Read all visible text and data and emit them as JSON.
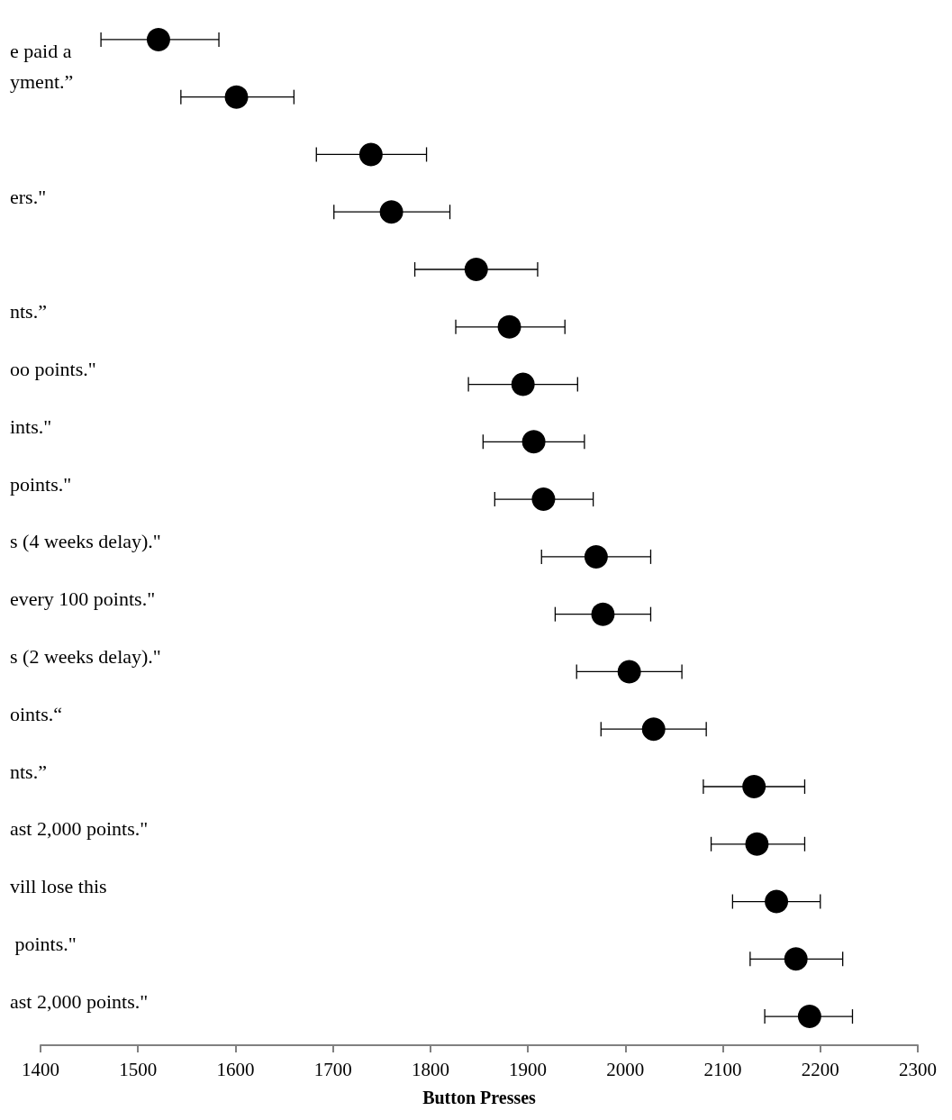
{
  "chart_data": {
    "type": "scatter",
    "orientation": "horizontal",
    "xlabel": "Button Presses",
    "categories": [
      null,
      "e paid a\nyment.”",
      null,
      "ers.\"",
      null,
      "nts.”",
      "oo points.\"",
      "ints.\"",
      "points.\"",
      "s (4 weeks delay).\"",
      "every 100 points.\"",
      "s (2 weeks delay).\"",
      "oints.“",
      "nts.”",
      "ast 2,000 points.\"",
      "vill lose this",
      " points.\"",
      "ast 2,000 points.\""
    ],
    "values": [
      1521,
      1601,
      1739,
      1760,
      1847,
      1881,
      1895,
      1906,
      1916,
      1970,
      1977,
      2004,
      2029,
      2132,
      2135,
      2155,
      2175,
      2189
    ],
    "errors": [
      [
        1462,
        1583
      ],
      [
        1544,
        1660
      ],
      [
        1683,
        1796
      ],
      [
        1701,
        1820
      ],
      [
        1784,
        1910
      ],
      [
        1826,
        1938
      ],
      [
        1839,
        1951
      ],
      [
        1854,
        1958
      ],
      [
        1866,
        1967
      ],
      [
        1914,
        2026
      ],
      [
        1928,
        2026
      ],
      [
        1950,
        2058
      ],
      [
        1975,
        2083
      ],
      [
        2080,
        2184
      ],
      [
        2088,
        2184
      ],
      [
        2110,
        2200
      ],
      [
        2128,
        2223
      ],
      [
        2143,
        2233
      ]
    ],
    "color": "#000000",
    "marker": "circle",
    "xlim": [
      1400,
      2300
    ],
    "xticks": [
      1400,
      1500,
      1600,
      1700,
      1800,
      1900,
      2000,
      2100,
      2200,
      2300
    ],
    "grid": false
  }
}
